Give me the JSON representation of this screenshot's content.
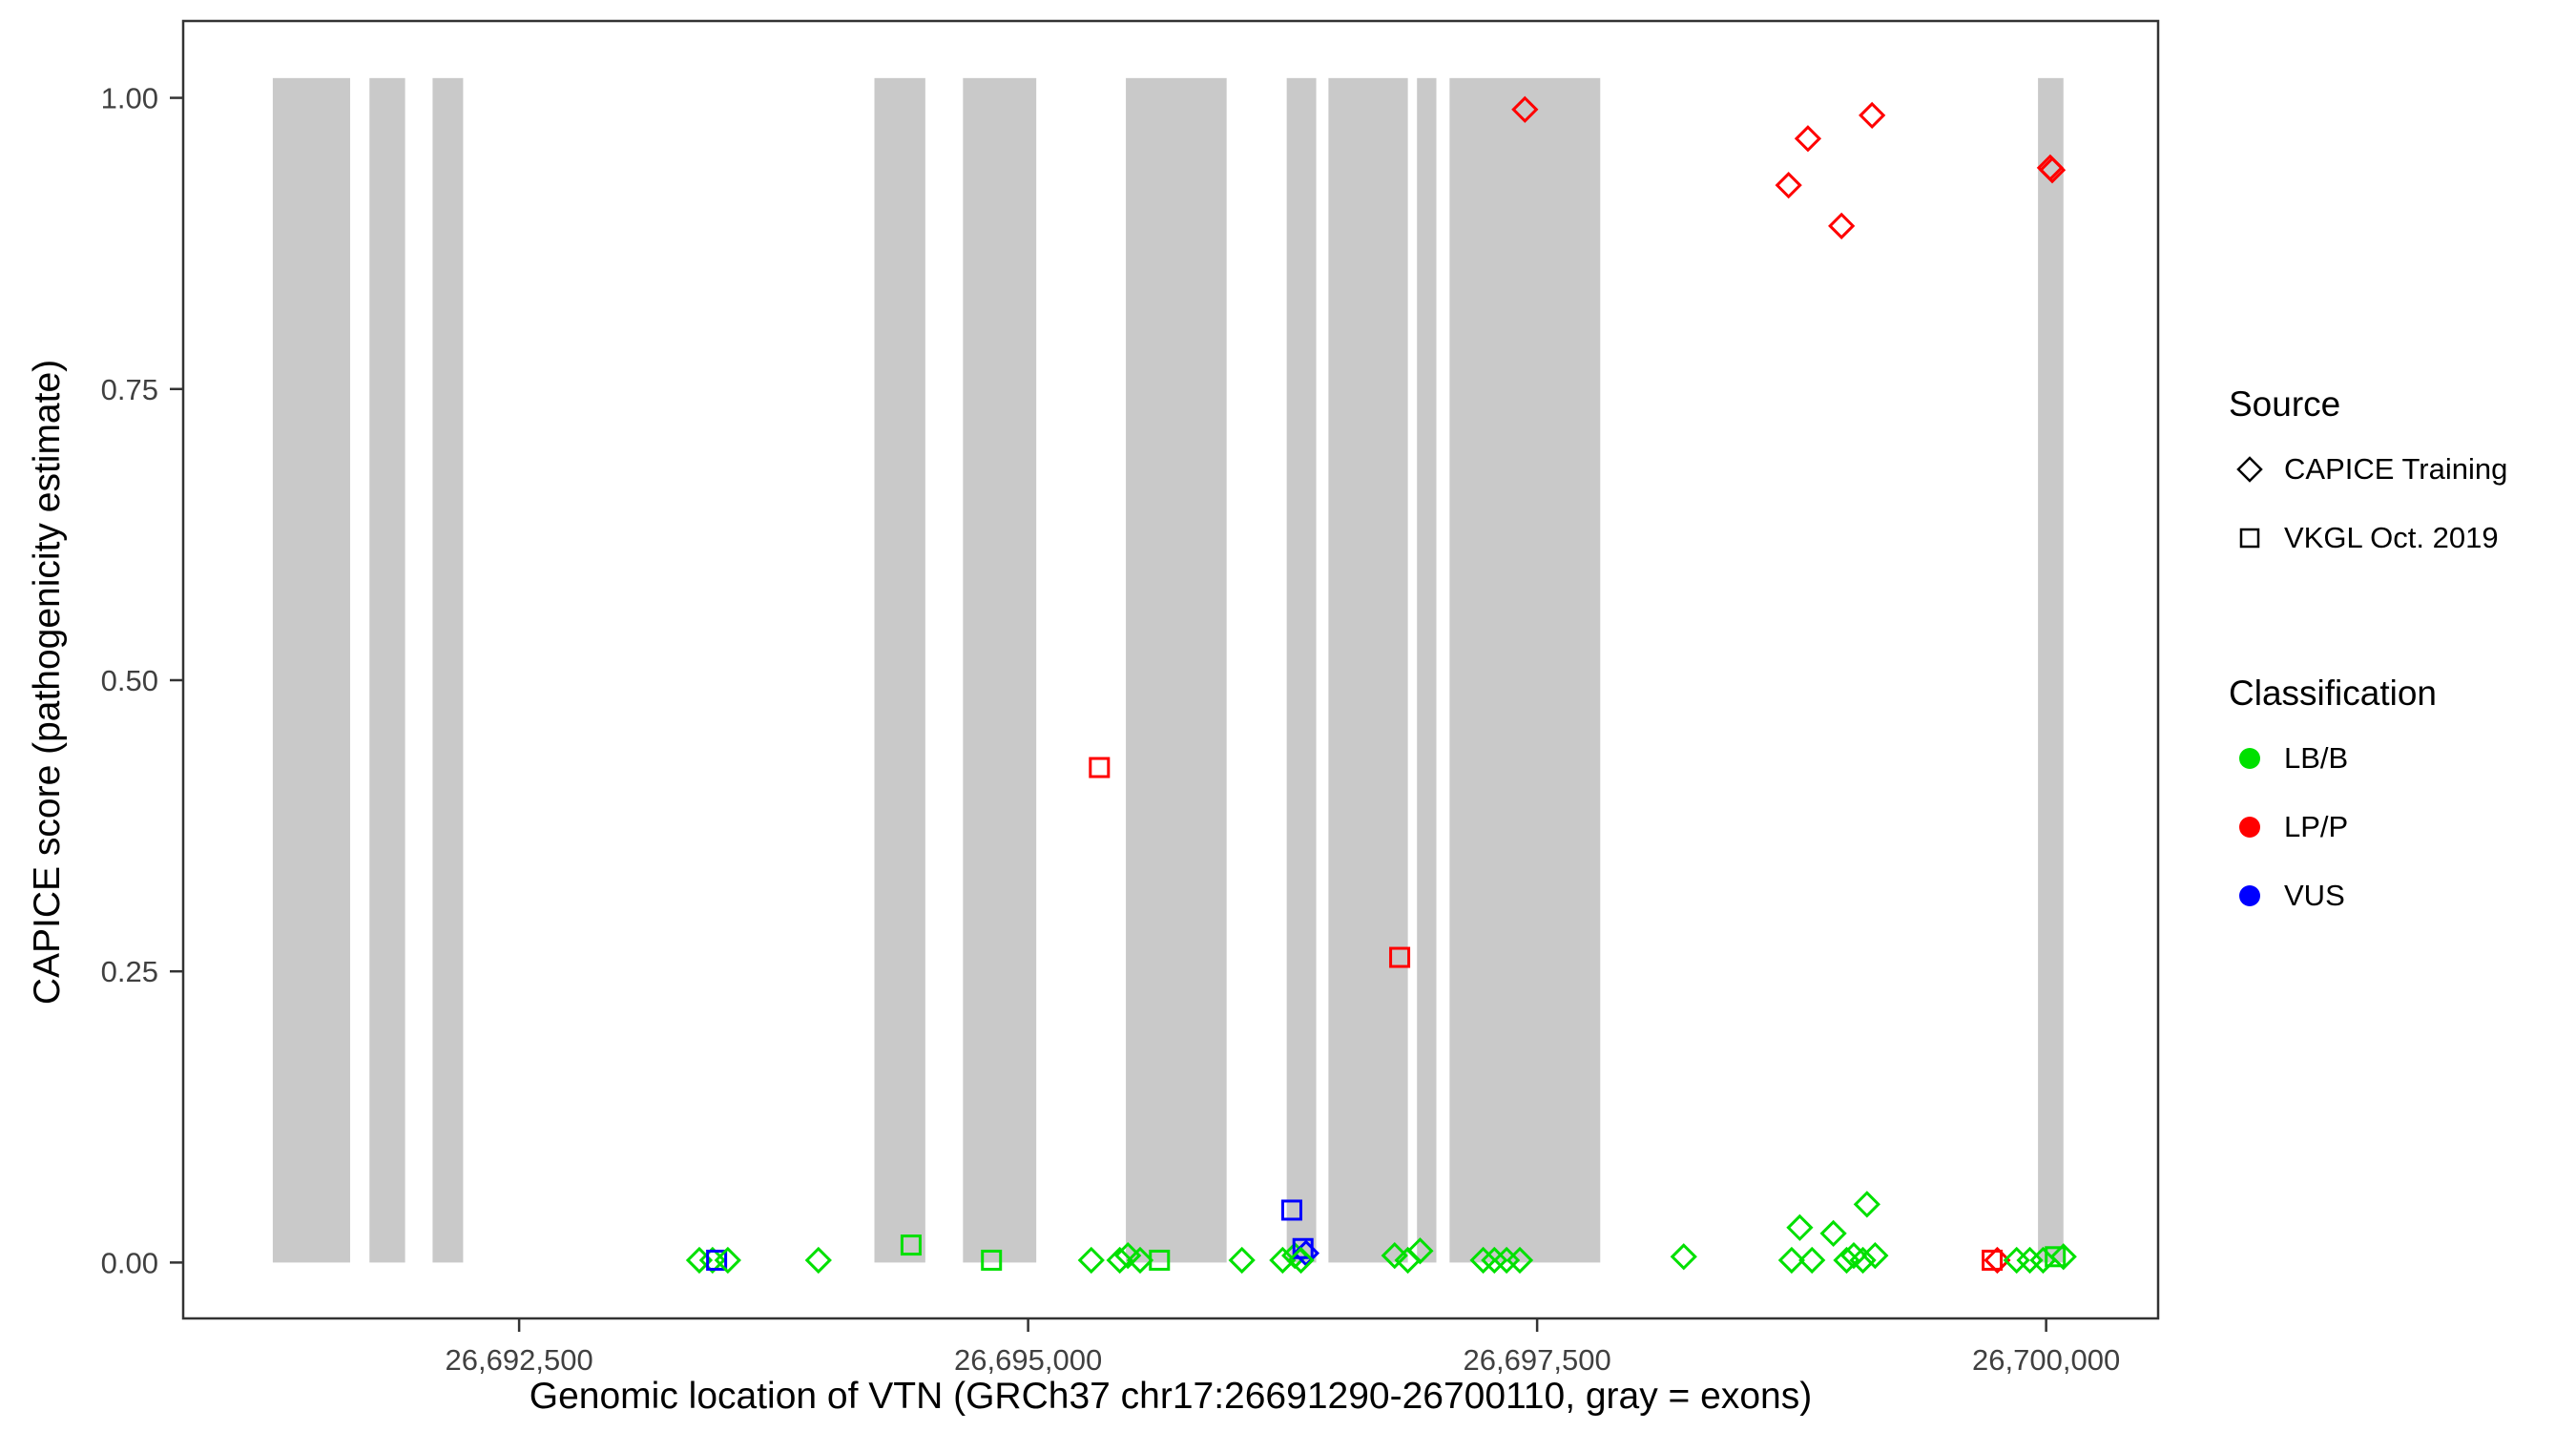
{
  "chart_data": {
    "type": "scatter",
    "title": "",
    "xlabel": "Genomic location of VTN (GRCh37 chr17:26691290-26700110, gray = exons)",
    "ylabel": "CAPICE score (pathogenicity estimate)",
    "xlim": [
      26690850,
      26700550
    ],
    "ylim": [
      -0.048,
      1.066
    ],
    "grid": false,
    "x_ticks": [
      {
        "v": 26692500,
        "label": "26,692,500"
      },
      {
        "v": 26695000,
        "label": "26,695,000"
      },
      {
        "v": 26697500,
        "label": "26,697,500"
      },
      {
        "v": 26700000,
        "label": "26,700,000"
      }
    ],
    "y_ticks": [
      {
        "v": 0.0,
        "label": "0.00"
      },
      {
        "v": 0.25,
        "label": "0.25"
      },
      {
        "v": 0.5,
        "label": "0.50"
      },
      {
        "v": 0.75,
        "label": "0.75"
      },
      {
        "v": 1.0,
        "label": "1.00"
      }
    ],
    "exon_color": "#c9c9c9",
    "exon_score_range": [
      0,
      1.017
    ],
    "exons": [
      [
        26691290,
        26691670
      ],
      [
        26691765,
        26691940
      ],
      [
        26692075,
        26692225
      ],
      [
        26694245,
        26694495
      ],
      [
        26694680,
        26695040
      ],
      [
        26695480,
        26695975
      ],
      [
        26696270,
        26696415
      ],
      [
        26696475,
        26696865
      ],
      [
        26696910,
        26697005
      ],
      [
        26697070,
        26697810
      ],
      [
        26699960,
        26700085
      ]
    ],
    "class_colors": {
      "LB/B": "#00e000",
      "LP/P": "#ff0000",
      "VUS": "#0000ff"
    },
    "shape_names": {
      "d": "diamond (CAPICE Training)",
      "s": "square (VKGL Oct. 2019)"
    },
    "points_format": [
      "genomic_position",
      "capice_score",
      "shape",
      "classification"
    ],
    "points": [
      [
        26693385,
        0.002,
        "d",
        "LB/B"
      ],
      [
        26693450,
        0.002,
        "d",
        "LB/B"
      ],
      [
        26693470,
        0.002,
        "s",
        "VUS"
      ],
      [
        26693525,
        0.002,
        "d",
        "LB/B"
      ],
      [
        26693970,
        0.002,
        "d",
        "LB/B"
      ],
      [
        26694425,
        0.015,
        "s",
        "LB/B"
      ],
      [
        26694820,
        0.002,
        "s",
        "LB/B"
      ],
      [
        26695310,
        0.002,
        "d",
        "LB/B"
      ],
      [
        26695350,
        0.425,
        "s",
        "LP/P"
      ],
      [
        26695450,
        0.002,
        "d",
        "LB/B"
      ],
      [
        26695490,
        0.006,
        "d",
        "LB/B"
      ],
      [
        26695550,
        0.002,
        "d",
        "LB/B"
      ],
      [
        26695645,
        0.002,
        "s",
        "LB/B"
      ],
      [
        26696050,
        0.002,
        "d",
        "LB/B"
      ],
      [
        26696250,
        0.002,
        "d",
        "LB/B"
      ],
      [
        26696295,
        0.045,
        "s",
        "VUS"
      ],
      [
        26696310,
        0.006,
        "d",
        "LB/B"
      ],
      [
        26696350,
        0.012,
        "s",
        "VUS"
      ],
      [
        26696365,
        0.008,
        "d",
        "VUS"
      ],
      [
        26696340,
        0.002,
        "d",
        "LB/B"
      ],
      [
        26696800,
        0.006,
        "d",
        "LB/B"
      ],
      [
        26696825,
        0.262,
        "s",
        "LP/P"
      ],
      [
        26696865,
        0.002,
        "d",
        "LB/B"
      ],
      [
        26696925,
        0.01,
        "d",
        "LB/B"
      ],
      [
        26697235,
        0.002,
        "d",
        "LB/B"
      ],
      [
        26697290,
        0.002,
        "d",
        "LB/B"
      ],
      [
        26697350,
        0.002,
        "d",
        "LB/B"
      ],
      [
        26697415,
        0.002,
        "d",
        "LB/B"
      ],
      [
        26697440,
        0.99,
        "d",
        "LP/P"
      ],
      [
        26698220,
        0.005,
        "d",
        "LB/B"
      ],
      [
        26698735,
        0.925,
        "d",
        "LP/P"
      ],
      [
        26698830,
        0.965,
        "d",
        "LP/P"
      ],
      [
        26698995,
        0.89,
        "d",
        "LP/P"
      ],
      [
        26699145,
        0.985,
        "d",
        "LP/P"
      ],
      [
        26698750,
        0.002,
        "d",
        "LB/B"
      ],
      [
        26698790,
        0.03,
        "d",
        "LB/B"
      ],
      [
        26698850,
        0.002,
        "d",
        "LB/B"
      ],
      [
        26698955,
        0.025,
        "d",
        "LB/B"
      ],
      [
        26699020,
        0.002,
        "d",
        "LB/B"
      ],
      [
        26699055,
        0.006,
        "d",
        "LB/B"
      ],
      [
        26699100,
        0.002,
        "d",
        "LB/B"
      ],
      [
        26699120,
        0.05,
        "d",
        "LB/B"
      ],
      [
        26699160,
        0.006,
        "d",
        "LB/B"
      ],
      [
        26699735,
        0.002,
        "s",
        "LP/P"
      ],
      [
        26699760,
        0.002,
        "d",
        "LP/P"
      ],
      [
        26699855,
        0.002,
        "d",
        "LB/B"
      ],
      [
        26699920,
        0.002,
        "d",
        "LB/B"
      ],
      [
        26699985,
        0.002,
        "d",
        "LB/B"
      ],
      [
        26700020,
        0.94,
        "d",
        "LP/P"
      ],
      [
        26700030,
        0.938,
        "d",
        "LP/P"
      ],
      [
        26700045,
        0.005,
        "s",
        "LB/B"
      ],
      [
        26700085,
        0.005,
        "d",
        "LB/B"
      ]
    ]
  },
  "legend": {
    "source": {
      "title": "Source",
      "items": [
        {
          "shape": "diamond",
          "label": "CAPICE Training"
        },
        {
          "shape": "square",
          "label": "VKGL Oct. 2019"
        }
      ]
    },
    "classification": {
      "title": "Classification",
      "items": [
        {
          "cls": "LB/B",
          "label": "LB/B"
        },
        {
          "cls": "LP/P",
          "label": "LP/P"
        },
        {
          "cls": "VUS",
          "label": "VUS"
        }
      ]
    }
  }
}
